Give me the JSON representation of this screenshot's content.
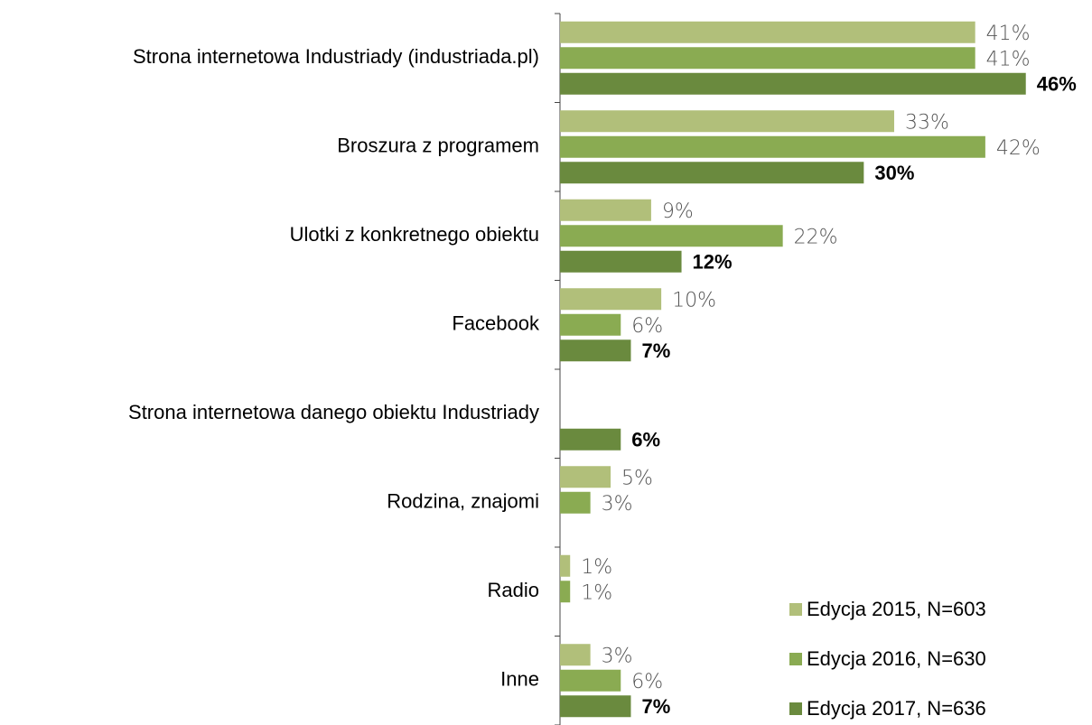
{
  "chart_data": {
    "type": "bar",
    "orientation": "horizontal",
    "categories": [
      "Strona internetowa Industriady (industriada.pl)",
      "Broszura z programem",
      "Ulotki z konkretnego obiektu",
      "Facebook",
      "Strona internetowa danego obiektu Industriady",
      "Rodzina, znajomi",
      "Radio",
      "Inne"
    ],
    "series": [
      {
        "name": "Edycja 2015, N=603",
        "color": "#b1bf7a",
        "values": [
          41,
          33,
          9,
          10,
          null,
          5,
          1,
          3
        ],
        "value_labels": [
          "41%",
          "33%",
          "9%",
          "10%",
          null,
          "5%",
          "1%",
          "3%"
        ]
      },
      {
        "name": "Edycja 2016, N=630",
        "color": "#8aab52",
        "values": [
          41,
          42,
          22,
          6,
          null,
          3,
          1,
          6
        ],
        "value_labels": [
          "41%",
          "42%",
          "22%",
          "6%",
          null,
          "3%",
          "1%",
          "6%"
        ]
      },
      {
        "name": "Edycja 2017, N=636",
        "color": "#6a8a3e",
        "values": [
          46,
          30,
          12,
          7,
          6,
          null,
          null,
          7
        ],
        "value_labels": [
          "46%",
          "30%",
          "12%",
          "7%",
          "6%",
          null,
          null,
          "7%"
        ]
      }
    ],
    "xlim": [
      0,
      52
    ],
    "legend": "lower right"
  }
}
